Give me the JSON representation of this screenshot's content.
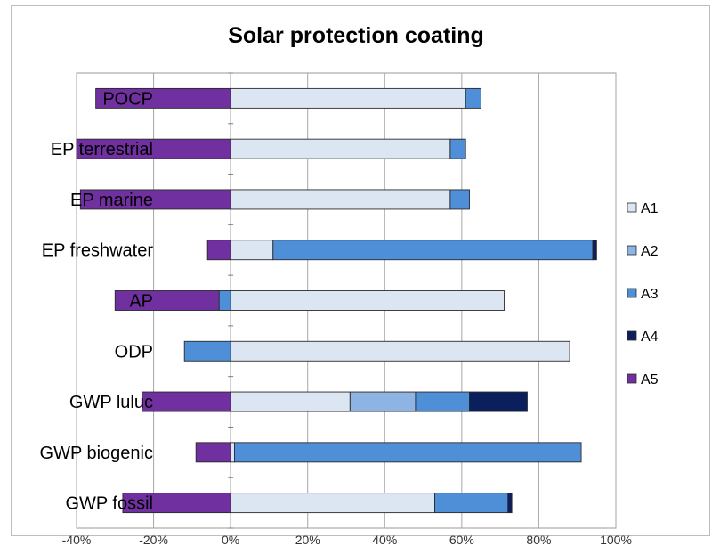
{
  "chart_data": {
    "type": "bar",
    "stacked": true,
    "orientation": "horizontal",
    "title": "Solar protection coating",
    "xlabel": "",
    "ylabel": "",
    "xlim": [
      -0.4,
      1.0
    ],
    "x_ticks": [
      "-40%",
      "-20%",
      "0%",
      "20%",
      "40%",
      "60%",
      "80%",
      "100%"
    ],
    "gridlines": "vertical",
    "legend_position": "right",
    "categories": [
      "GWP fossil",
      "GWP biogenic",
      "GWP luluc",
      "ODP",
      "AP",
      "EP freshwater",
      "EP marine",
      "EP terrestrial",
      "POCP"
    ],
    "series": [
      {
        "name": "A1",
        "color": "#dce6f2",
        "values": [
          0.53,
          0.01,
          0.31,
          0.88,
          0.71,
          0.11,
          0.57,
          0.57,
          0.61
        ]
      },
      {
        "name": "A2",
        "color": "#8db4e2",
        "values": [
          0.0,
          0.0,
          0.17,
          0.0,
          0.0,
          0.0,
          0.0,
          0.0,
          0.0
        ]
      },
      {
        "name": "A3",
        "color": "#4f8fd8",
        "values": [
          0.19,
          0.9,
          0.14,
          -0.12,
          -0.03,
          0.83,
          0.05,
          0.04,
          0.04
        ]
      },
      {
        "name": "A4",
        "color": "#0b1f5c",
        "values": [
          0.01,
          0.0,
          0.15,
          0.0,
          0.0,
          0.01,
          0.0,
          0.0,
          0.0
        ]
      },
      {
        "name": "A5",
        "color": "#7030a0",
        "values": [
          -0.28,
          -0.09,
          -0.23,
          0.0,
          -0.27,
          -0.06,
          -0.39,
          -0.4,
          -0.35
        ]
      }
    ]
  }
}
